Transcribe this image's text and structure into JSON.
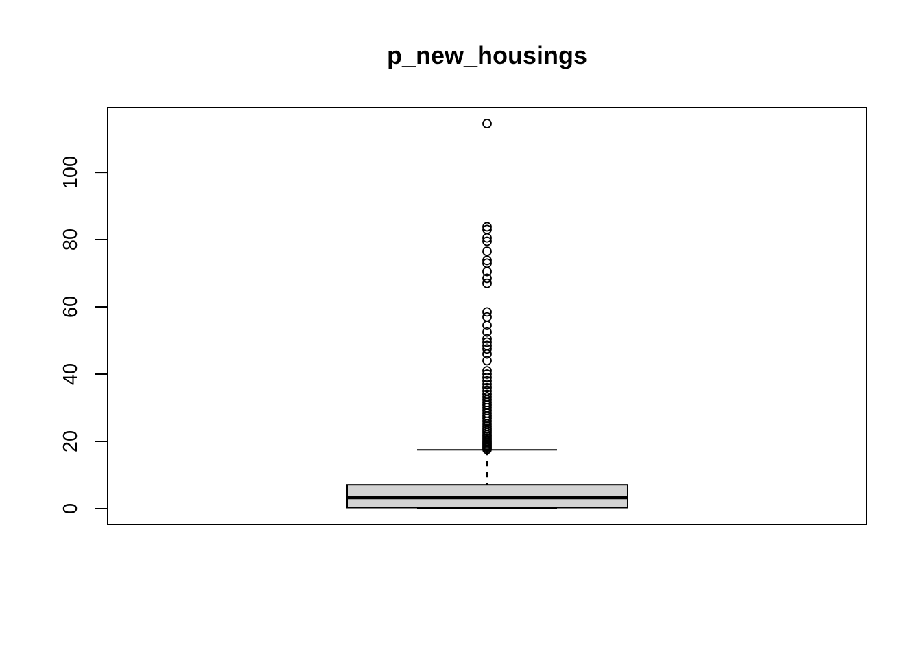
{
  "chart_data": {
    "type": "boxplot",
    "title": "p_new_housings",
    "xlabel": "",
    "ylabel": "",
    "ylim": [
      -4.7,
      119.2
    ],
    "yticks": [
      0,
      20,
      40,
      60,
      80,
      100
    ],
    "grid": false,
    "box": {
      "min": 0,
      "q1": 0.3,
      "median": 3.3,
      "q3": 7.1,
      "whisker_low": 0,
      "whisker_high": 17.5,
      "fill": "#d3d3d3"
    },
    "outliers": [
      17.6,
      18.0,
      18.4,
      18.8,
      19.2,
      19.6,
      20.0,
      20.5,
      21.0,
      21.5,
      22.0,
      22.6,
      23.2,
      23.8,
      24.5,
      25.2,
      26.0,
      26.8,
      27.6,
      28.4,
      29.2,
      30.0,
      30.8,
      31.6,
      32.4,
      33.2,
      34.0,
      35.0,
      36.0,
      37.0,
      38.0,
      39.0,
      40.0,
      41.0,
      44.0,
      46.0,
      47.5,
      48.5,
      49.5,
      50.5,
      52.5,
      54.5,
      57.0,
      58.5,
      67.0,
      68.5,
      70.5,
      73.0,
      73.8,
      76.5,
      79.5,
      80.5,
      83.0,
      83.8,
      114.5
    ]
  }
}
